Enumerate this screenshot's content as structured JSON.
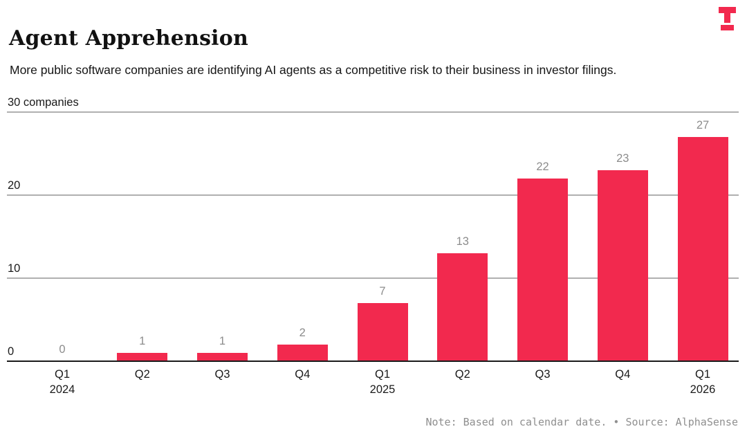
{
  "header": {
    "title": "Agent Apprehension",
    "subtitle": "More public software companies are identifying AI agents as a competitive risk to their business in investor filings."
  },
  "logo": {
    "color": "#f2294e"
  },
  "chart_data": {
    "type": "bar",
    "title": "Agent Apprehension",
    "subtitle": "More public software companies are identifying AI agents as a competitive risk to their business in investor filings.",
    "categories": [
      "Q1 2024",
      "Q2 2024",
      "Q3 2024",
      "Q4 2024",
      "Q1 2025",
      "Q2 2025",
      "Q3 2025",
      "Q4 2025",
      "Q1 2026"
    ],
    "x_tick_labels": [
      {
        "line1": "Q1",
        "line2": "2024"
      },
      {
        "line1": "Q2"
      },
      {
        "line1": "Q3"
      },
      {
        "line1": "Q4"
      },
      {
        "line1": "Q1",
        "line2": "2025"
      },
      {
        "line1": "Q2"
      },
      {
        "line1": "Q3"
      },
      {
        "line1": "Q4"
      },
      {
        "line1": "Q1",
        "line2": "2026"
      }
    ],
    "values": [
      0,
      1,
      1,
      2,
      7,
      13,
      22,
      23,
      27
    ],
    "ylabel": "companies",
    "ylim": [
      0,
      30
    ],
    "yticks": [
      {
        "value": 30,
        "label": "30 companies"
      },
      {
        "value": 20,
        "label": "20"
      },
      {
        "value": 10,
        "label": "10"
      },
      {
        "value": 0,
        "label": "0"
      }
    ],
    "grid": true,
    "legend": "none",
    "show_value_labels": true,
    "colors": {
      "bar": "#f2294e",
      "gridline": "#b0b0b0",
      "baseline": "#1a1a1a",
      "value_label": "#8c8c8c",
      "tick_label": "#1a1a1a"
    }
  },
  "footer": {
    "note": "Note: Based on calendar date. • Source: AlphaSense"
  }
}
